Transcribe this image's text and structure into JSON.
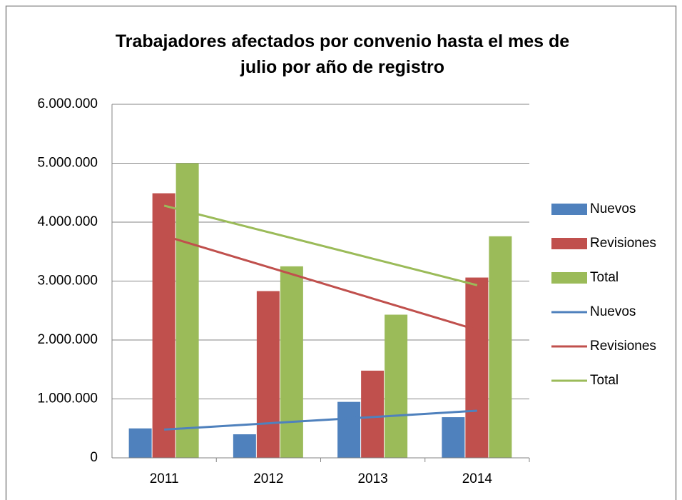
{
  "chart_data": {
    "type": "bar",
    "title": "Trabajadores afectados por convenio hasta el mes de julio por año de registro",
    "categories": [
      "2011",
      "2012",
      "2013",
      "2014"
    ],
    "series": [
      {
        "name": "Nuevos",
        "type": "bar",
        "color": "#4f81bd",
        "values": [
          500000,
          400000,
          950000,
          690000
        ]
      },
      {
        "name": "Revisiones",
        "type": "bar",
        "color": "#c0504d",
        "values": [
          4490000,
          2830000,
          1480000,
          3060000
        ]
      },
      {
        "name": "Total",
        "type": "bar",
        "color": "#9bbb59",
        "values": [
          5000000,
          3250000,
          2430000,
          3760000
        ]
      },
      {
        "name": "Nuevos",
        "type": "line",
        "color": "#4f81bd",
        "values": [
          480000,
          587000,
          693000,
          800000
        ]
      },
      {
        "name": "Revisiones",
        "type": "line",
        "color": "#c0504d",
        "values": [
          3770000,
          3237000,
          2703000,
          2170000
        ]
      },
      {
        "name": "Total",
        "type": "line",
        "color": "#9bbb59",
        "values": [
          4280000,
          3830000,
          3380000,
          2930000
        ]
      }
    ],
    "ylim": [
      0,
      6000000
    ],
    "yticks": [
      0,
      {
        "value": 1000000,
        "label": "1.000.000"
      },
      {
        "value": 2000000,
        "label": "2.000.000"
      },
      {
        "value": 3000000,
        "label": "3.000.000"
      },
      {
        "value": 4000000,
        "label": "4.000.000"
      },
      {
        "value": 5000000,
        "label": "5.000.000"
      },
      {
        "value": 6000000,
        "label": "6.000.000"
      }
    ],
    "grid": true,
    "legend": "right"
  }
}
